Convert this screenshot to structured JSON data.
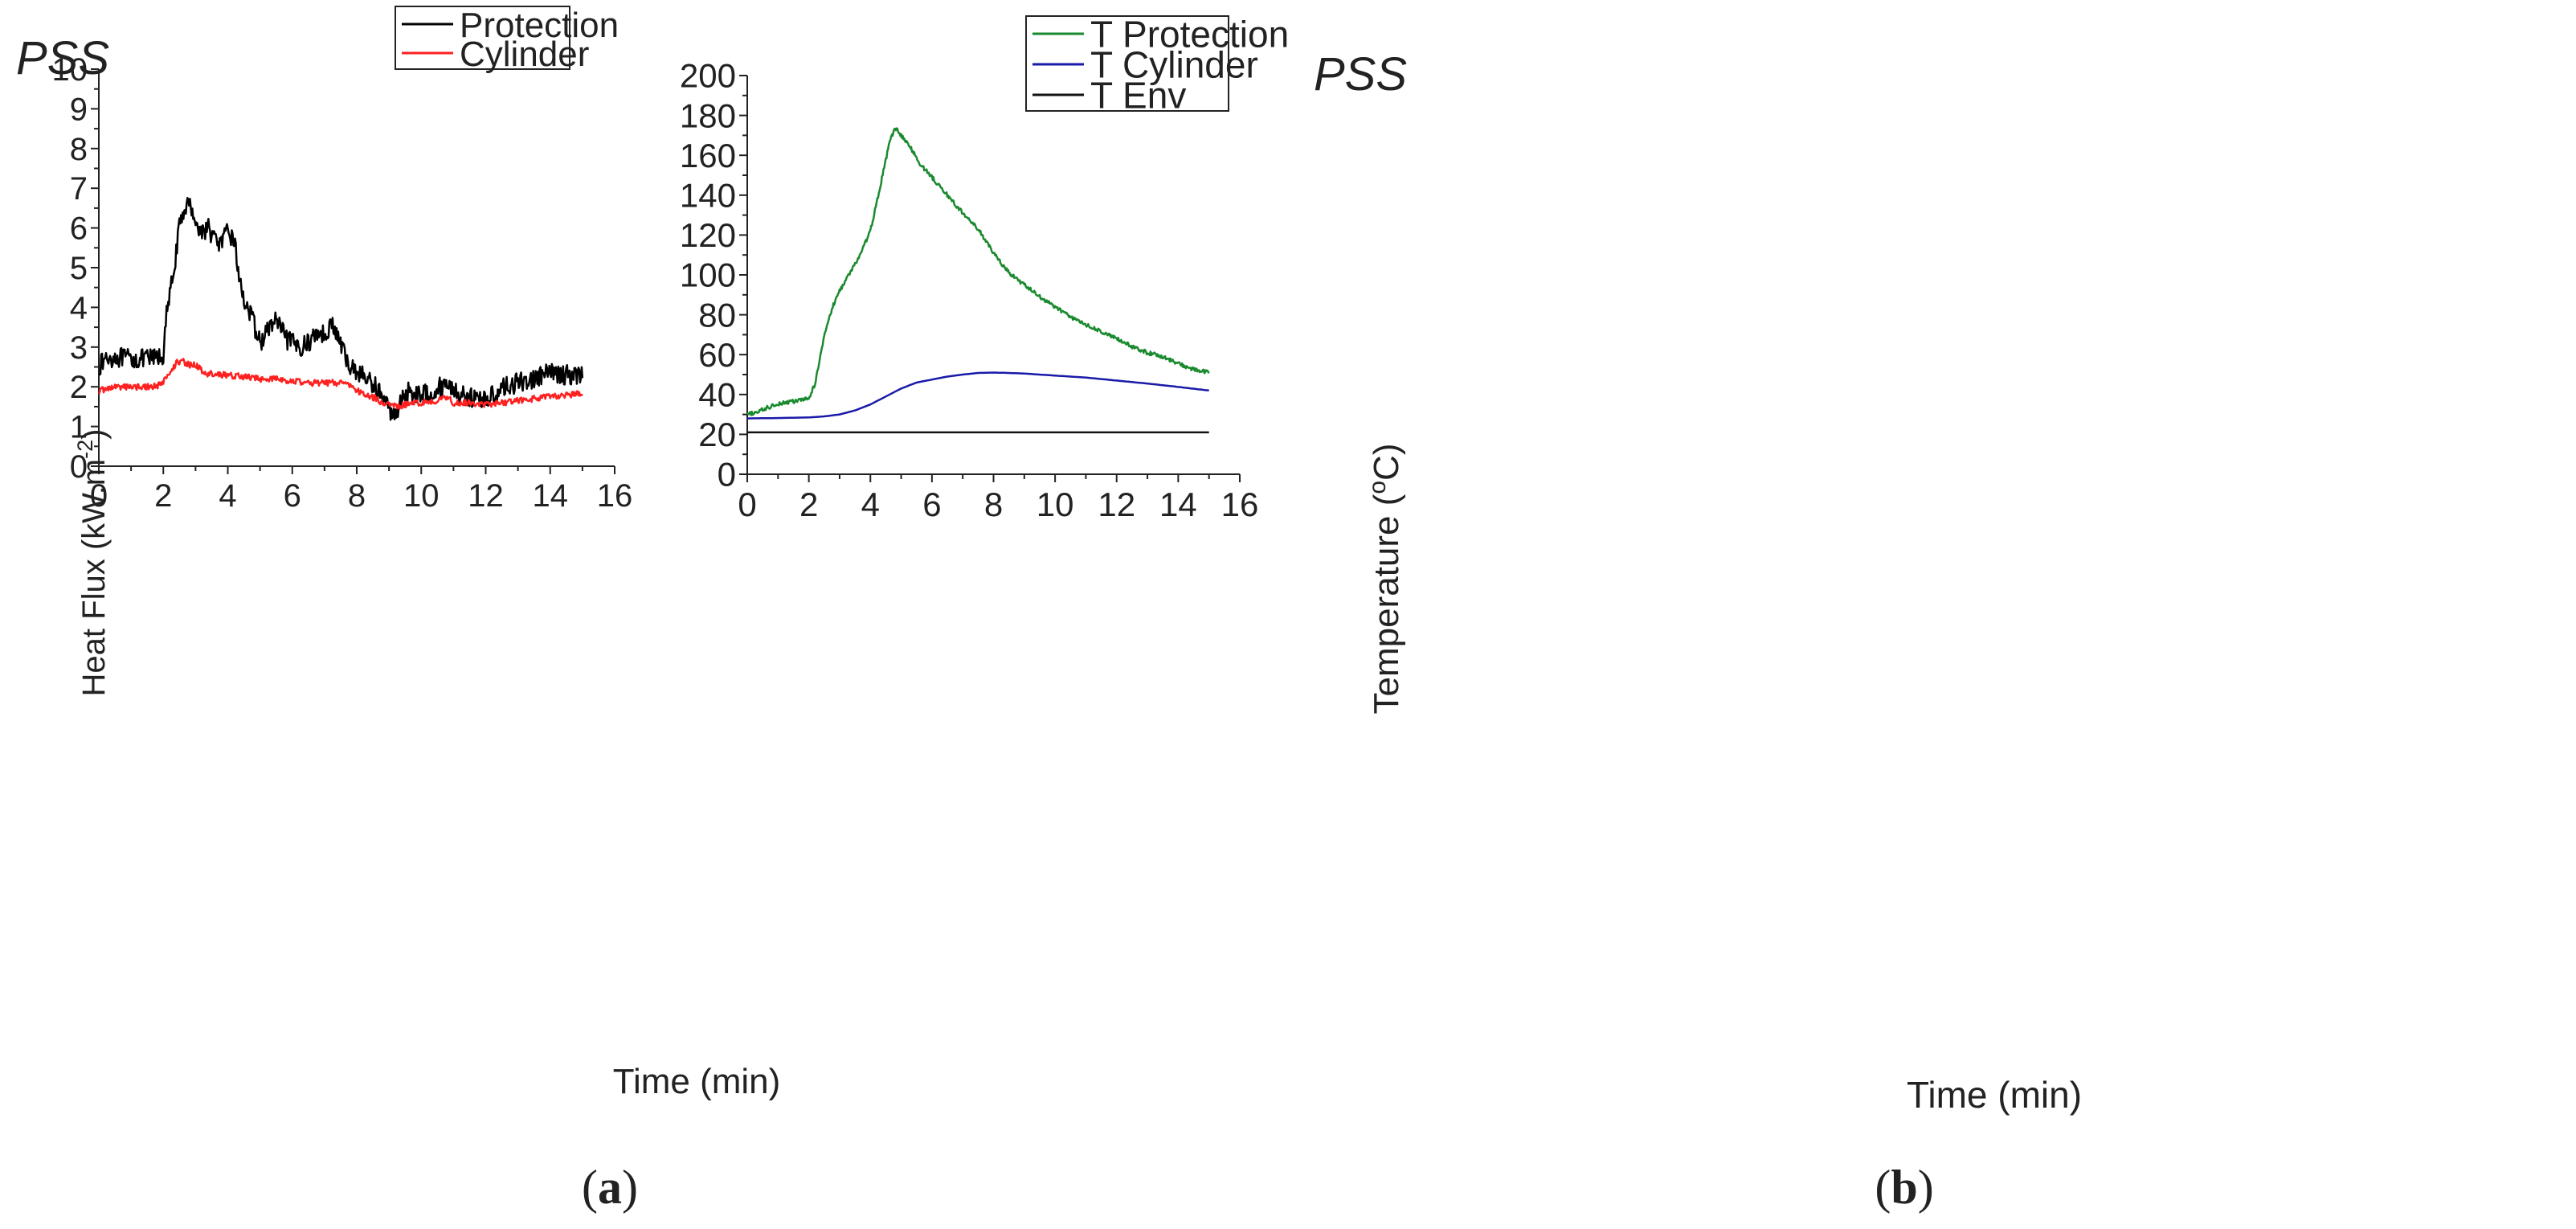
{
  "chart_data": [
    {
      "id": "a",
      "type": "line",
      "panel_label_open": "(",
      "panel_label_letter": "a",
      "panel_label_close": ")",
      "title": "PSS",
      "xlabel": "Time (min)",
      "ylabel": "Heat Flux (kW.m",
      "ylabel_sup": "-2",
      "ylabel_end": ")",
      "xlim": [
        0,
        16
      ],
      "ylim": [
        0,
        10
      ],
      "xticks": [
        0,
        2,
        4,
        6,
        8,
        10,
        12,
        14,
        16
      ],
      "yticks": [
        0,
        1,
        2,
        3,
        4,
        5,
        6,
        7,
        8,
        9,
        10
      ],
      "grid": false,
      "legend_position": "top-right",
      "series": [
        {
          "name": "Protection",
          "color": "#000000",
          "noise": 0.25,
          "points": [
            [
              0,
              2.5
            ],
            [
              0.2,
              2.7
            ],
            [
              0.5,
              2.75
            ],
            [
              1,
              2.7
            ],
            [
              1.5,
              2.7
            ],
            [
              1.9,
              2.75
            ],
            [
              2.0,
              2.8
            ],
            [
              2.1,
              3.8
            ],
            [
              2.3,
              4.8
            ],
            [
              2.5,
              6.0
            ],
            [
              2.7,
              6.6
            ],
            [
              2.9,
              6.5
            ],
            [
              3.1,
              5.9
            ],
            [
              3.4,
              6.0
            ],
            [
              3.6,
              5.7
            ],
            [
              3.8,
              5.6
            ],
            [
              4.0,
              5.9
            ],
            [
              4.2,
              5.7
            ],
            [
              4.4,
              4.5
            ],
            [
              4.6,
              4.0
            ],
            [
              4.8,
              3.6
            ],
            [
              5.0,
              3.1
            ],
            [
              5.3,
              3.5
            ],
            [
              5.5,
              3.7
            ],
            [
              5.8,
              3.2
            ],
            [
              6.2,
              3.0
            ],
            [
              6.5,
              3.1
            ],
            [
              6.8,
              3.4
            ],
            [
              7.0,
              3.3
            ],
            [
              7.2,
              3.6
            ],
            [
              7.5,
              3.1
            ],
            [
              7.7,
              2.6
            ],
            [
              8.0,
              2.4
            ],
            [
              8.3,
              2.2
            ],
            [
              8.6,
              2.0
            ],
            [
              8.9,
              1.6
            ],
            [
              9.1,
              1.3
            ],
            [
              9.3,
              1.5
            ],
            [
              9.6,
              1.9
            ],
            [
              10.0,
              1.8
            ],
            [
              10.4,
              1.9
            ],
            [
              10.8,
              2.1
            ],
            [
              11.2,
              1.8
            ],
            [
              11.6,
              1.7
            ],
            [
              12.0,
              1.7
            ],
            [
              12.3,
              1.8
            ],
            [
              12.6,
              2.0
            ],
            [
              13.0,
              2.1
            ],
            [
              13.5,
              2.2
            ],
            [
              14.0,
              2.35
            ],
            [
              14.5,
              2.3
            ],
            [
              15.0,
              2.3
            ]
          ]
        },
        {
          "name": "Cylinder",
          "color": "#ff2020",
          "noise": 0.08,
          "points": [
            [
              0,
              1.9
            ],
            [
              0.5,
              2.0
            ],
            [
              1.0,
              2.0
            ],
            [
              1.5,
              2.0
            ],
            [
              1.95,
              2.05
            ],
            [
              2.05,
              2.2
            ],
            [
              2.2,
              2.35
            ],
            [
              2.4,
              2.6
            ],
            [
              2.6,
              2.65
            ],
            [
              2.8,
              2.55
            ],
            [
              3.0,
              2.55
            ],
            [
              3.3,
              2.35
            ],
            [
              3.6,
              2.3
            ],
            [
              4.0,
              2.3
            ],
            [
              4.5,
              2.25
            ],
            [
              5.0,
              2.2
            ],
            [
              5.5,
              2.2
            ],
            [
              6.0,
              2.15
            ],
            [
              6.5,
              2.1
            ],
            [
              7.0,
              2.1
            ],
            [
              7.5,
              2.1
            ],
            [
              7.8,
              2.05
            ],
            [
              8.0,
              1.9
            ],
            [
              8.3,
              1.8
            ],
            [
              8.6,
              1.7
            ],
            [
              8.9,
              1.55
            ],
            [
              9.2,
              1.5
            ],
            [
              9.5,
              1.55
            ],
            [
              10.0,
              1.6
            ],
            [
              10.5,
              1.65
            ],
            [
              10.8,
              1.75
            ],
            [
              11.0,
              1.6
            ],
            [
              11.5,
              1.6
            ],
            [
              12.0,
              1.55
            ],
            [
              12.5,
              1.6
            ],
            [
              13.0,
              1.65
            ],
            [
              13.5,
              1.7
            ],
            [
              14.0,
              1.75
            ],
            [
              14.5,
              1.8
            ],
            [
              15.0,
              1.82
            ]
          ]
        }
      ]
    },
    {
      "id": "b",
      "type": "line",
      "panel_label_open": "(",
      "panel_label_letter": "b",
      "panel_label_close": ")",
      "title": "PSS",
      "xlabel": "Time (min)",
      "ylabel": "Temperature (",
      "ylabel_sup": "o",
      "ylabel_end": "C)",
      "xlim": [
        0,
        16
      ],
      "ylim": [
        0,
        200
      ],
      "xticks": [
        0,
        2,
        4,
        6,
        8,
        10,
        12,
        14,
        16
      ],
      "yticks": [
        0,
        20,
        40,
        60,
        80,
        100,
        120,
        140,
        160,
        180,
        200
      ],
      "grid": false,
      "legend_position": "top-right",
      "series": [
        {
          "name": "T Protection",
          "color": "#1a8a2e",
          "noise": 1.0,
          "points": [
            [
              0,
              30
            ],
            [
              0.3,
              31
            ],
            [
              0.6,
              33
            ],
            [
              1.0,
              35.5
            ],
            [
              1.5,
              36.5
            ],
            [
              2.0,
              38
            ],
            [
              2.2,
              45
            ],
            [
              2.5,
              70
            ],
            [
              2.8,
              85
            ],
            [
              3.0,
              92
            ],
            [
              3.3,
              100
            ],
            [
              3.6,
              108
            ],
            [
              4.0,
              122
            ],
            [
              4.3,
              143
            ],
            [
              4.6,
              165
            ],
            [
              4.8,
              174
            ],
            [
              5.0,
              170
            ],
            [
              5.3,
              164
            ],
            [
              5.6,
              156
            ],
            [
              6.0,
              149
            ],
            [
              6.5,
              140
            ],
            [
              7.0,
              131
            ],
            [
              7.5,
              123
            ],
            [
              8.0,
              111
            ],
            [
              8.5,
              101
            ],
            [
              9.0,
              95
            ],
            [
              9.5,
              89
            ],
            [
              10.0,
              84
            ],
            [
              10.5,
              79
            ],
            [
              11.0,
              75
            ],
            [
              11.5,
              71.5
            ],
            [
              12.0,
              68
            ],
            [
              12.5,
              64
            ],
            [
              13.0,
              61
            ],
            [
              13.5,
              59
            ],
            [
              14.0,
              55.5
            ],
            [
              14.5,
              52.5
            ],
            [
              15.0,
              51
            ]
          ]
        },
        {
          "name": "T Cylinder",
          "color": "#1a1aaa",
          "noise": 0,
          "points": [
            [
              0,
              28
            ],
            [
              1,
              28.2
            ],
            [
              2,
              28.5
            ],
            [
              2.5,
              29
            ],
            [
              3,
              30
            ],
            [
              3.5,
              32
            ],
            [
              4,
              35
            ],
            [
              4.5,
              39
            ],
            [
              5,
              43
            ],
            [
              5.5,
              46
            ],
            [
              6,
              47.5
            ],
            [
              6.5,
              49
            ],
            [
              7,
              50
            ],
            [
              7.5,
              50.8
            ],
            [
              8,
              51
            ],
            [
              8.5,
              50.8
            ],
            [
              9,
              50.5
            ],
            [
              9.5,
              50
            ],
            [
              10,
              49.5
            ],
            [
              11,
              48.5
            ],
            [
              12,
              47
            ],
            [
              13,
              45.5
            ],
            [
              14,
              43.8
            ],
            [
              15,
              42
            ]
          ]
        },
        {
          "name": "T Env",
          "color": "#111111",
          "noise": 0,
          "points": [
            [
              0,
              21
            ],
            [
              15,
              21
            ]
          ]
        }
      ]
    }
  ]
}
